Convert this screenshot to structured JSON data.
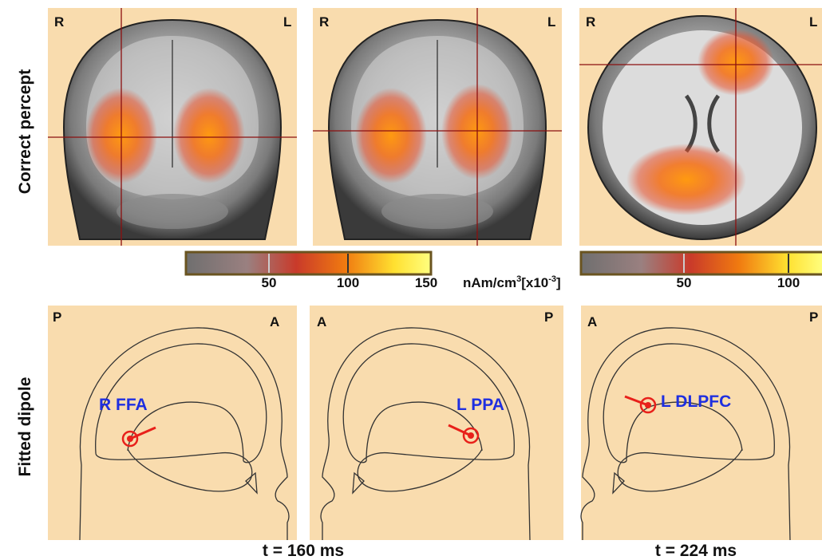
{
  "row_labels": [
    "Correct percept",
    "Fitted dipole"
  ],
  "brain_panels": [
    {
      "left": "R",
      "right": "L"
    },
    {
      "left": "R",
      "right": "L"
    },
    {
      "left": "R",
      "right": "L"
    }
  ],
  "colorbars": [
    {
      "ticks": [
        50,
        100,
        150
      ]
    },
    {
      "ticks": [
        50,
        100
      ]
    }
  ],
  "colorbar_unit": {
    "base": "nAm/cm",
    "exp": "3",
    "scale": "[x10",
    "scale_exp": "-3",
    "close": "]"
  },
  "dipole_panels": [
    {
      "left": "P",
      "right": "A",
      "label": "R FFA"
    },
    {
      "left": "A",
      "right": "P",
      "label": "L PPA"
    },
    {
      "left": "A",
      "right": "P",
      "label": "L DLPFC"
    }
  ],
  "times": [
    "t = 160 ms",
    "t = 224 ms"
  ]
}
